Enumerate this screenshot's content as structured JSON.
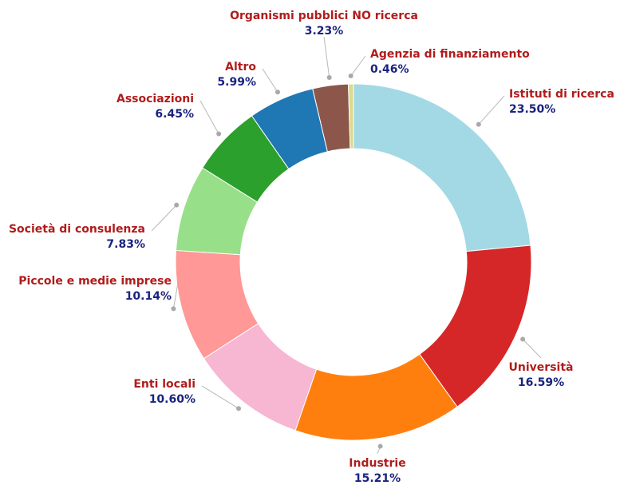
{
  "chart_data": {
    "type": "pie",
    "variant": "donut",
    "start": "top, clockwise",
    "slices": [
      {
        "label": "Istituti di ricerca",
        "value": 23.5,
        "display": "23.50%",
        "color": "#a2d9e4"
      },
      {
        "label": "Università",
        "value": 16.59,
        "display": "16.59%",
        "color": "#d62728"
      },
      {
        "label": "Industrie",
        "value": 15.21,
        "display": "15.21%",
        "color": "#ff7f0e"
      },
      {
        "label": "Enti locali",
        "value": 10.6,
        "display": "10.60%",
        "color": "#f7b6d2"
      },
      {
        "label": "Piccole e medie imprese",
        "value": 10.14,
        "display": "10.14%",
        "color": "#ff9896"
      },
      {
        "label": "Società di consulenza",
        "value": 7.83,
        "display": "7.83%",
        "color": "#98df8a"
      },
      {
        "label": "Associazioni",
        "value": 6.45,
        "display": "6.45%",
        "color": "#2ca02c"
      },
      {
        "label": "Altro",
        "value": 5.99,
        "display": "5.99%",
        "color": "#1f77b4"
      },
      {
        "label": "Organismi pubblici NO ricerca",
        "value": 3.23,
        "display": "3.23%",
        "color": "#8c564b"
      },
      {
        "label": "Agenzia di finanziamento",
        "value": 0.46,
        "display": "0.46%",
        "color": "#dbdb8d"
      }
    ]
  }
}
